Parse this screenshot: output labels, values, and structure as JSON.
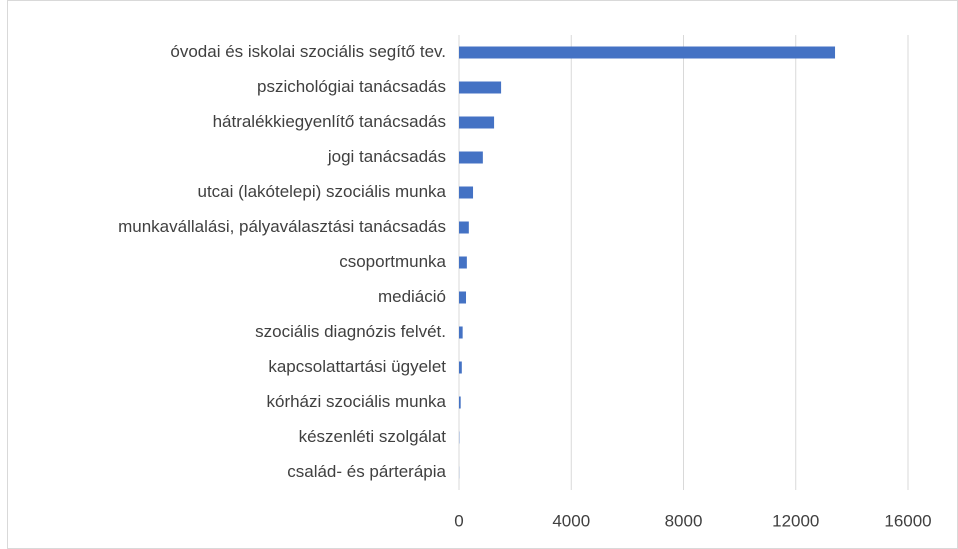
{
  "chart_data": {
    "type": "hbar",
    "categories": [
      "óvodai és iskolai szociális segítő tev.",
      "pszichológiai tanácsadás",
      "hátralékkiegyenlítő tanácsadás",
      "jogi tanácsadás",
      "utcai (lakótelepi) szociális munka",
      "munkavállalási, pályaválasztási tanácsadás",
      "csoportmunka",
      "mediáció",
      "szociális diagnózis felvét.",
      "kapcsolattartási ügyelet",
      "kórházi szociális munka",
      "készenléti szolgálat",
      "család- és párterápia"
    ],
    "values": [
      13400,
      1500,
      1250,
      850,
      500,
      350,
      280,
      250,
      130,
      100,
      60,
      10,
      5
    ],
    "color": "#4472c4",
    "xlim": [
      0,
      16000
    ],
    "xticks": [
      0,
      4000,
      8000,
      12000,
      16000
    ],
    "grid": true
  }
}
